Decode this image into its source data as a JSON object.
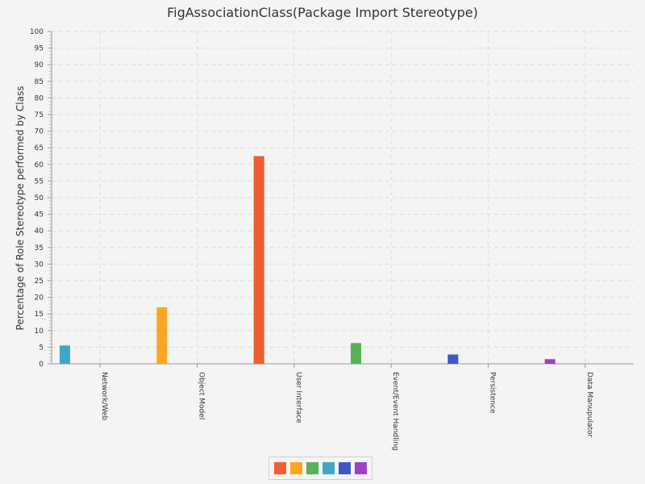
{
  "chart_data": {
    "type": "bar",
    "title": "FigAssociationClass(Package Import Stereotype)",
    "xlabel": "",
    "ylabel": "Percentage of Role Stereotype performed by Class",
    "ylim": [
      0,
      100
    ],
    "y_ticks": [
      0,
      5,
      10,
      15,
      20,
      25,
      30,
      35,
      40,
      45,
      50,
      55,
      60,
      65,
      70,
      75,
      80,
      85,
      90,
      95,
      100
    ],
    "grid": true,
    "legend_position": "bottom",
    "categories": [
      "Network/Web",
      "Object Model",
      "User Interface",
      "Event/Event Handling",
      "Persistence",
      "Data Manupulator"
    ],
    "series": [
      {
        "color": "#ef5e2e",
        "values": [
          0,
          0,
          62.5,
          0,
          0,
          0
        ]
      },
      {
        "color": "#fba623",
        "values": [
          0,
          17,
          0,
          0,
          0,
          0
        ]
      },
      {
        "color": "#56b456",
        "values": [
          0,
          0,
          0,
          6.25,
          0,
          0
        ]
      },
      {
        "color": "#3fa7c4",
        "values": [
          5.5,
          0,
          0,
          0,
          0,
          0
        ]
      },
      {
        "color": "#3d57c4",
        "values": [
          0,
          0,
          0,
          0,
          2.8,
          0
        ]
      },
      {
        "color": "#9a44c4",
        "values": [
          0,
          0,
          0,
          0,
          0,
          1.4
        ]
      }
    ]
  }
}
